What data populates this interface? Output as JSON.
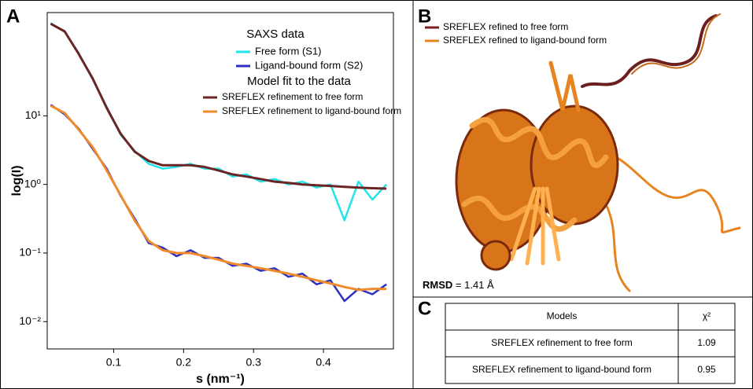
{
  "panel_labels": [
    "A",
    "B",
    "C"
  ],
  "chart_data": {
    "type": "line",
    "xlabel": "s (nm⁻¹)",
    "ylabel": "log(I)",
    "xlim": [
      0.005,
      0.5
    ],
    "xticks": [
      0.1,
      0.2,
      0.3,
      0.4
    ],
    "ylim": [
      0.004,
      320
    ],
    "log_y": true,
    "yticks": [
      {
        "value": 0.01,
        "label": "10⁻²"
      },
      {
        "value": 0.1,
        "label": "10⁻¹"
      },
      {
        "value": 1,
        "label": "10⁰"
      },
      {
        "value": 10,
        "label": "10¹"
      }
    ],
    "legend_titles": [
      "SAXS data",
      "Model fit to the data"
    ],
    "x": [
      0.01,
      0.03,
      0.05,
      0.07,
      0.09,
      0.11,
      0.13,
      0.15,
      0.17,
      0.19,
      0.21,
      0.23,
      0.25,
      0.27,
      0.29,
      0.31,
      0.33,
      0.35,
      0.37,
      0.39,
      0.41,
      0.43,
      0.45,
      0.47,
      0.49
    ],
    "series": [
      {
        "name": "Free form (S1)",
        "color": "#22e3e8",
        "values": [
          225,
          168,
          82,
          34,
          13.5,
          5.3,
          3.1,
          2.0,
          1.7,
          1.8,
          2.0,
          1.7,
          1.7,
          1.3,
          1.4,
          1.1,
          1.2,
          1.0,
          1.1,
          0.9,
          1.0,
          0.3,
          1.1,
          0.6,
          1.0
        ]
      },
      {
        "name": "Ligand-bound form (S2)",
        "color": "#2c30c2",
        "values": [
          14.5,
          10.5,
          6.5,
          3.3,
          1.7,
          0.68,
          0.32,
          0.14,
          0.12,
          0.09,
          0.11,
          0.085,
          0.085,
          0.065,
          0.07,
          0.055,
          0.06,
          0.045,
          0.05,
          0.035,
          0.04,
          0.02,
          0.03,
          0.025,
          0.035
        ]
      },
      {
        "name": "SREFLEX refinement to free form",
        "color": "#6b2525",
        "values": [
          220,
          170,
          80,
          35,
          13,
          5.5,
          3.0,
          2.2,
          1.9,
          1.9,
          1.9,
          1.8,
          1.6,
          1.4,
          1.3,
          1.2,
          1.1,
          1.05,
          1.0,
          0.97,
          0.95,
          0.92,
          0.9,
          0.88,
          0.87
        ]
      },
      {
        "name": "SREFLEX refinement to ligand-bound form",
        "color": "#f08a2a",
        "values": [
          14,
          11,
          6.3,
          3.5,
          1.6,
          0.7,
          0.3,
          0.15,
          0.11,
          0.1,
          0.1,
          0.09,
          0.08,
          0.07,
          0.065,
          0.06,
          0.055,
          0.05,
          0.045,
          0.04,
          0.036,
          0.032,
          0.029,
          0.03,
          0.03
        ]
      }
    ]
  },
  "structure": {
    "legend": [
      {
        "name": "SREFLEX refined to free form"
      },
      {
        "name": "SREFLEX refined to ligand-bound form"
      }
    ],
    "rmsd_label": "RMSD",
    "rmsd_text": " = 1.41 Å"
  },
  "table": {
    "header": [
      "Models",
      "χ²"
    ],
    "rows": [
      [
        "SREFLEX refinement to free form",
        1.09
      ],
      [
        "SREFLEX refinement to ligand-bound form",
        0.95
      ]
    ]
  }
}
